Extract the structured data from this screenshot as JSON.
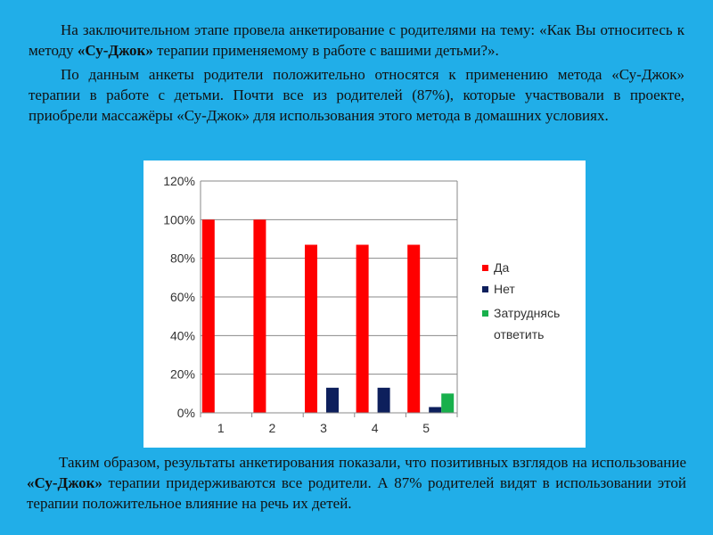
{
  "text": {
    "p1_a": "На заключительном этапе провела анкетирование с родителями на тему: «Как Вы относитесь к методу ",
    "p1_b": "«Су-Джок»",
    "p1_c": " терапии применяемому в работе с вашими детьми?».",
    "p2": "По данным анкеты родители положительно относятся к применению метода «Су-Джок» терапии в работе с детьми. Почти все из родителей (87%), которые участвовали в проекте, приобрели массажёры «Су-Джок» для использования этого метода в домашних условиях.",
    "p3_a": "Таким образом, результаты анкетирования показали, что позитивных взглядов на использование ",
    "p3_b": "«Су-Джок»",
    "p3_c": " терапии  придерживаются все родители.  А 87% родителей видят в использовании этой терапии положительное влияние на речь их детей."
  },
  "chart_data": {
    "type": "bar",
    "categories": [
      "1",
      "2",
      "3",
      "4",
      "5"
    ],
    "series": [
      {
        "name": "Да",
        "color": "#ff0000",
        "values": [
          100,
          100,
          87,
          87,
          87
        ]
      },
      {
        "name": "Нет",
        "color": "#0d1f5c",
        "values": [
          0,
          0,
          13,
          13,
          3
        ]
      },
      {
        "name": "Затруднясь ответить",
        "color": "#18b04c",
        "values": [
          0,
          0,
          0,
          0,
          10
        ]
      }
    ],
    "ylim": [
      0,
      120
    ],
    "yticks": [
      0,
      20,
      40,
      60,
      80,
      100,
      120
    ],
    "ytick_labels": [
      "0%",
      "20%",
      "40%",
      "60%",
      "80%",
      "100%",
      "120%"
    ],
    "grid": true,
    "legend": "right"
  }
}
